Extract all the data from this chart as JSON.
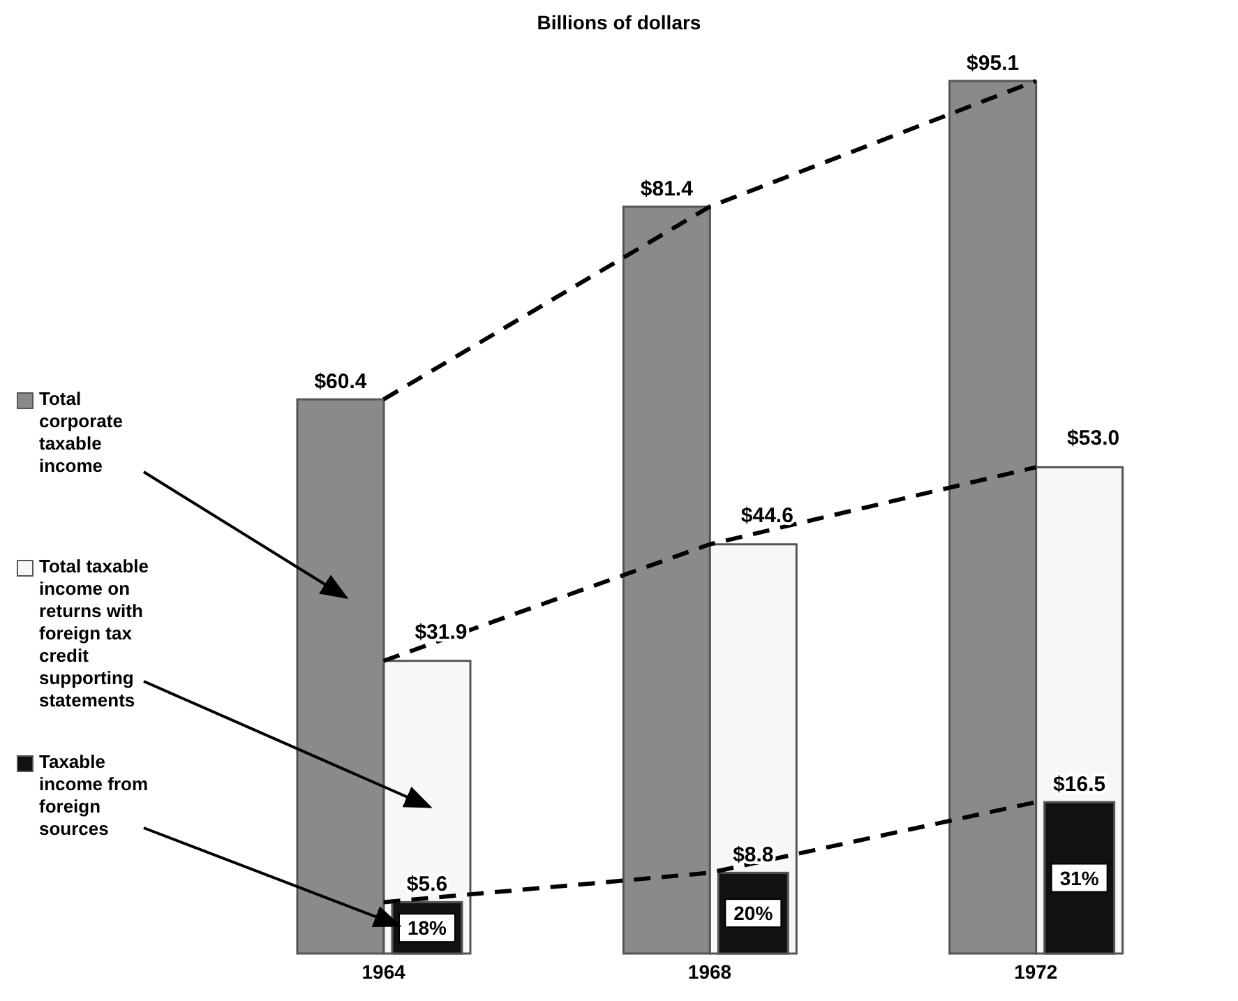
{
  "chart_data": {
    "type": "bar",
    "title": "Billions of dollars",
    "categories": [
      "1964",
      "1968",
      "1972"
    ],
    "series": [
      {
        "name": "Total corporate taxable income",
        "color": "#8a8a8a",
        "values": [
          60.4,
          81.4,
          95.1
        ],
        "value_labels": [
          "$60.4",
          "$81.4",
          "$95.1"
        ]
      },
      {
        "name": "Total taxable income on returns with foreign tax credit supporting statements",
        "color": "#f7f7f7",
        "values": [
          31.9,
          44.6,
          53.0
        ],
        "value_labels": [
          "$31.9",
          "$44.6",
          "$53.0"
        ]
      },
      {
        "name": "Taxable income from foreign sources",
        "color": "#111111",
        "values": [
          5.6,
          8.8,
          16.5
        ],
        "value_labels": [
          "$5.6",
          "$8.8",
          "$16.5"
        ]
      },
      {
        "type": "line",
        "color": "#000000",
        "line_style": "dashed",
        "values": [
          60.4,
          81.4,
          95.1
        ]
      },
      {
        "type": "line",
        "color": "#000000",
        "line_style": "dashed",
        "values": [
          31.9,
          44.6,
          53.0
        ]
      },
      {
        "type": "line",
        "color": "#000000",
        "line_style": "dashed",
        "values": [
          5.6,
          8.8,
          16.5
        ]
      }
    ],
    "annotations": [
      {
        "text": "18%",
        "x": "1964"
      },
      {
        "text": "20%",
        "x": "1968"
      },
      {
        "text": "31%",
        "x": "1972"
      }
    ],
    "legend": "left"
  }
}
